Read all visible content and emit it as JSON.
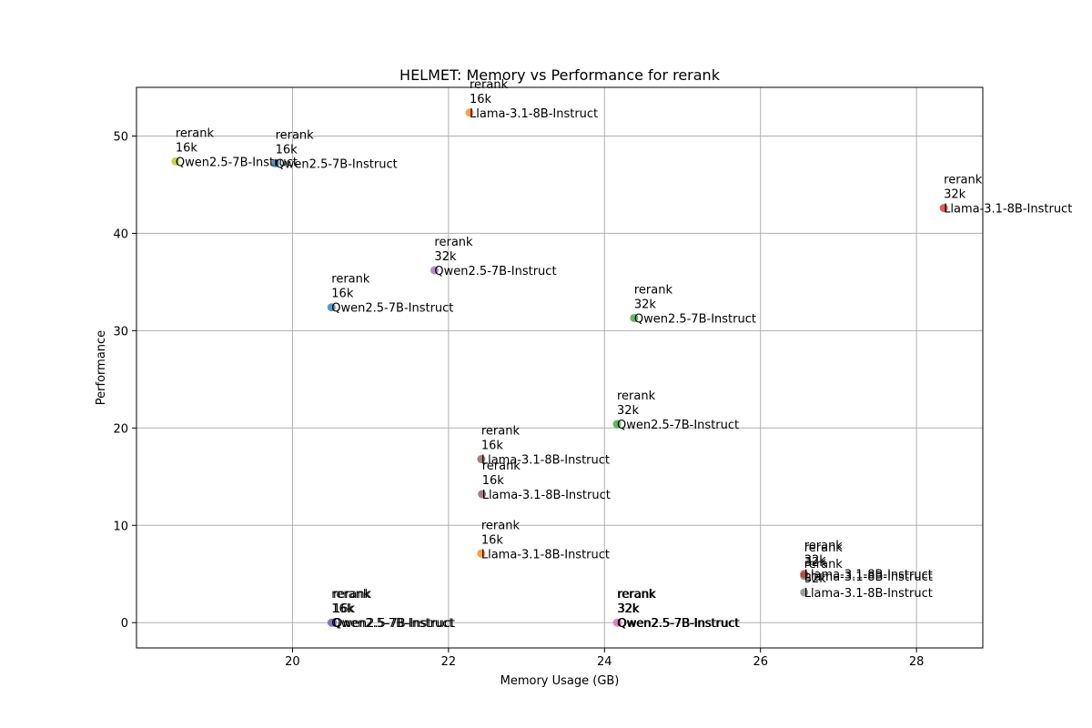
{
  "chart_data": {
    "type": "scatter",
    "title": "HELMET: Memory vs Performance for rerank",
    "xlabel": "Memory Usage (GB)",
    "ylabel": "Performance",
    "xlim": [
      18.0,
      28.85
    ],
    "ylim": [
      -2.6,
      55.0
    ],
    "xticks": [
      20,
      22,
      24,
      26,
      28
    ],
    "yticks": [
      0,
      10,
      20,
      30,
      40,
      50
    ],
    "grid": true,
    "points": [
      {
        "x": 18.5,
        "y": 47.4,
        "color": "#bcbd22",
        "label": [
          "rerank",
          "16k",
          "Qwen2.5-7B-Instruct"
        ]
      },
      {
        "x": 19.78,
        "y": 47.2,
        "color": "#1f77b4",
        "label": [
          "rerank",
          "16k",
          "Qwen2.5-7B-Instruct"
        ]
      },
      {
        "x": 22.27,
        "y": 52.4,
        "color": "#ff7f0e",
        "label": [
          "rerank",
          "16k",
          "Llama-3.1-8B-Instruct"
        ]
      },
      {
        "x": 28.35,
        "y": 42.6,
        "color": "#d62728",
        "label": [
          "rerank",
          "32k",
          "Llama-3.1-8B-Instruct"
        ]
      },
      {
        "x": 21.82,
        "y": 36.2,
        "color": "#9467bd",
        "label": [
          "rerank",
          "32k",
          "Qwen2.5-7B-Instruct"
        ]
      },
      {
        "x": 20.5,
        "y": 32.4,
        "color": "#1f77b4",
        "label": [
          "rerank",
          "16k",
          "Qwen2.5-7B-Instruct"
        ]
      },
      {
        "x": 24.38,
        "y": 31.3,
        "color": "#2ca02c",
        "label": [
          "rerank",
          "32k",
          "Qwen2.5-7B-Instruct"
        ]
      },
      {
        "x": 24.16,
        "y": 20.4,
        "color": "#2ca02c",
        "label": [
          "rerank",
          "32k",
          "Qwen2.5-7B-Instruct"
        ]
      },
      {
        "x": 22.42,
        "y": 16.8,
        "color": "#8c564b",
        "label": [
          "rerank",
          "16k",
          "Llama-3.1-8B-Instruct"
        ]
      },
      {
        "x": 22.43,
        "y": 13.2,
        "color": "#8c564b",
        "label": [
          "rerank",
          "16k",
          "Llama-3.1-8B-Instruct"
        ]
      },
      {
        "x": 22.42,
        "y": 7.1,
        "color": "#ff7f0e",
        "label": [
          "rerank",
          "16k",
          "Llama-3.1-8B-Instruct"
        ]
      },
      {
        "x": 20.5,
        "y": 0.0,
        "color": "#1f77b4",
        "label": [
          "rerank",
          "16k",
          "Qwen2.5-7B-Instruct"
        ]
      },
      {
        "x": 20.52,
        "y": 0.0,
        "color": "#9467bd",
        "label": [
          "rerank",
          "16k",
          "Qwen2.5-7B-Instruct"
        ]
      },
      {
        "x": 24.16,
        "y": 0.0,
        "color": "#e377c2",
        "label": [
          "rerank",
          "32k",
          "Qwen2.5-7B-Instruct"
        ]
      },
      {
        "x": 24.17,
        "y": 0.0,
        "color": "#e377c2",
        "label": [
          "rerank",
          "32k",
          "Qwen2.5-7B-Instruct"
        ]
      },
      {
        "x": 26.56,
        "y": 5.0,
        "color": "#d62728",
        "label": [
          "rerank",
          "32k",
          "Llama-3.1-8B-Instruct"
        ]
      },
      {
        "x": 26.56,
        "y": 4.8,
        "color": "#8c564b",
        "label": [
          "rerank",
          "32k",
          "Llama-3.1-8B-Instruct"
        ]
      },
      {
        "x": 26.56,
        "y": 3.1,
        "color": "#7f7f7f",
        "label": [
          "rerank",
          "32k",
          "Llama-3.1-8B-Instruct"
        ]
      }
    ]
  }
}
